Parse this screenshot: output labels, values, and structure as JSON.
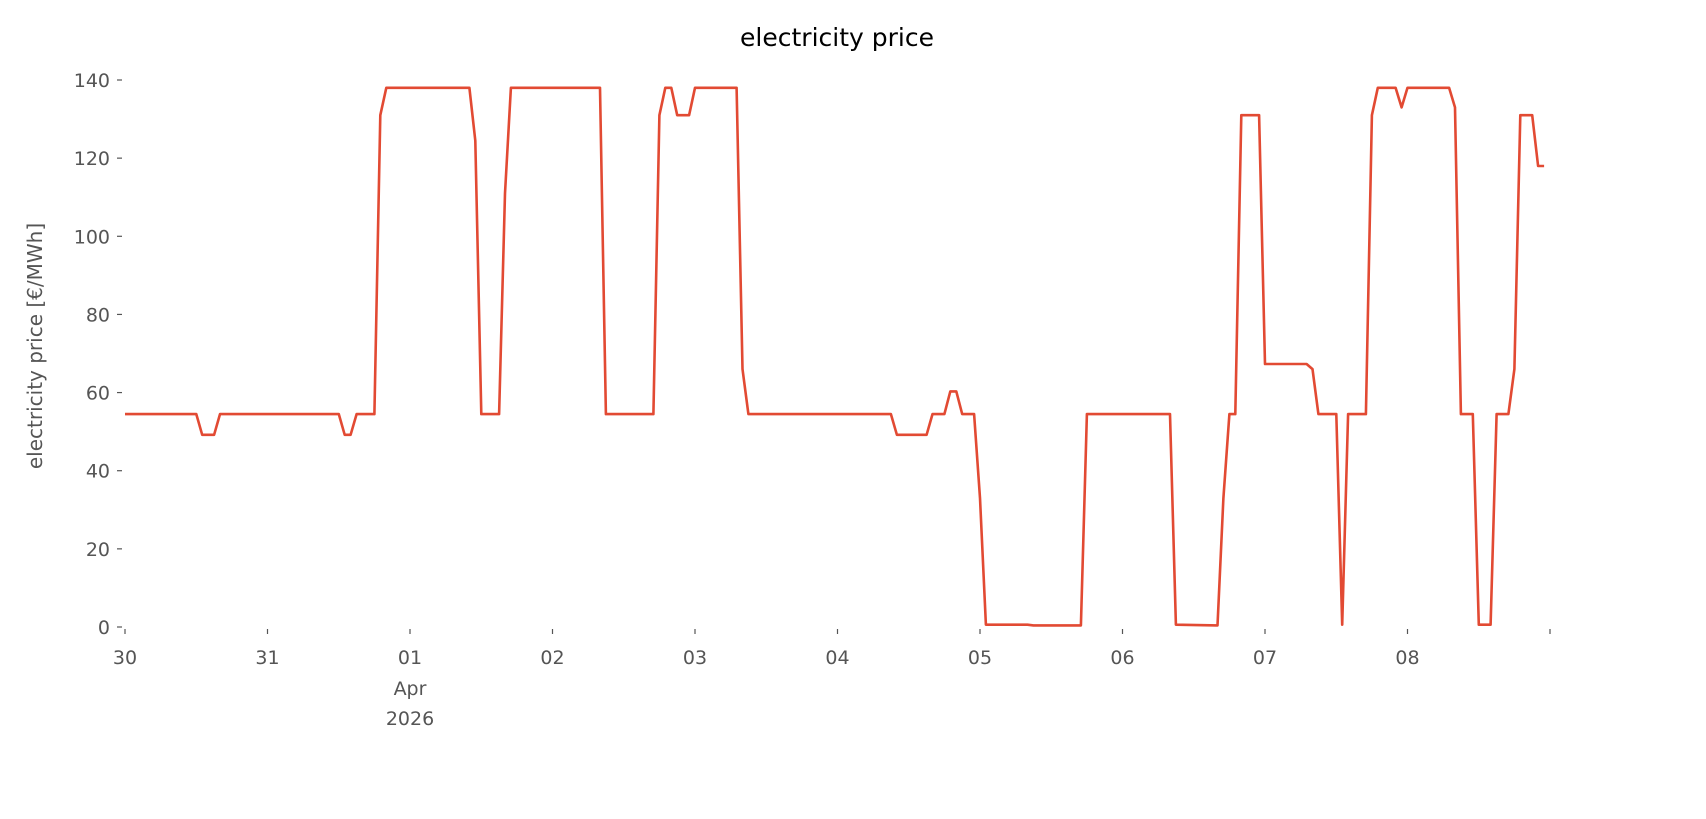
{
  "chart_data": {
    "type": "line",
    "title": "electricity price",
    "xlabel": "",
    "ylabel": "electricity price [€/MWh]",
    "x_start": "2026-03-30T00:00",
    "x_end": "2026-04-09T00:00",
    "xlim_hours_from_start": [
      0,
      240
    ],
    "ylim": [
      0,
      140
    ],
    "grid": false,
    "line_color": "#E24A33",
    "y_ticks": [
      0,
      20,
      40,
      60,
      80,
      100,
      120,
      140
    ],
    "x_ticks": [
      {
        "hour": 0,
        "label": "30"
      },
      {
        "hour": 24,
        "label": "31"
      },
      {
        "hour": 48,
        "label": "01",
        "sub1": "Apr",
        "sub2": "2026"
      },
      {
        "hour": 72,
        "label": "02"
      },
      {
        "hour": 96,
        "label": "03"
      },
      {
        "hour": 120,
        "label": "04"
      },
      {
        "hour": 144,
        "label": "05"
      },
      {
        "hour": 168,
        "label": "06"
      },
      {
        "hour": 192,
        "label": "07"
      },
      {
        "hour": 216,
        "label": "08"
      },
      {
        "hour": 240,
        "label": ""
      }
    ],
    "series": [
      {
        "points_hour_value": [
          [
            0,
            54.5
          ],
          [
            12,
            54.5
          ],
          [
            13,
            49.2
          ],
          [
            15,
            49.2
          ],
          [
            16,
            54.5
          ],
          [
            36,
            54.5
          ],
          [
            37,
            49.2
          ],
          [
            38,
            49.2
          ],
          [
            39,
            54.5
          ],
          [
            42,
            54.5
          ],
          [
            43,
            131
          ],
          [
            44,
            138
          ],
          [
            58,
            138
          ],
          [
            59,
            124.5
          ],
          [
            60,
            54.5
          ],
          [
            63,
            54.5
          ],
          [
            64,
            111
          ],
          [
            65,
            138
          ],
          [
            80,
            138
          ],
          [
            81,
            54.5
          ],
          [
            89,
            54.5
          ],
          [
            90,
            131
          ],
          [
            91,
            138
          ],
          [
            92,
            138
          ],
          [
            93,
            131
          ],
          [
            95,
            131
          ],
          [
            96,
            138
          ],
          [
            103,
            138
          ],
          [
            104,
            66
          ],
          [
            105,
            54.5
          ],
          [
            129,
            54.5
          ],
          [
            130,
            49.2
          ],
          [
            135,
            49.2
          ],
          [
            136,
            54.5
          ],
          [
            138,
            54.5
          ],
          [
            139,
            60.3
          ],
          [
            140,
            60.3
          ],
          [
            141,
            54.5
          ],
          [
            143,
            54.5
          ],
          [
            144,
            33
          ],
          [
            145,
            0.6
          ],
          [
            152,
            0.6
          ],
          [
            153,
            0.4
          ],
          [
            161,
            0.4
          ],
          [
            162,
            54.5
          ],
          [
            176,
            54.5
          ],
          [
            177,
            0.6
          ],
          [
            184,
            0.4
          ],
          [
            185,
            33
          ],
          [
            186,
            54.5
          ],
          [
            187,
            54.5
          ],
          [
            188,
            131
          ],
          [
            191,
            131
          ],
          [
            192,
            67.3
          ],
          [
            199,
            67.3
          ],
          [
            200,
            66
          ],
          [
            201,
            54.5
          ],
          [
            204,
            54.5
          ],
          [
            205,
            0.6
          ],
          [
            206,
            54.5
          ],
          [
            209,
            54.5
          ],
          [
            210,
            131
          ],
          [
            211,
            138
          ],
          [
            214,
            138
          ],
          [
            215,
            133
          ],
          [
            216,
            138
          ],
          [
            223,
            138
          ],
          [
            224,
            133
          ],
          [
            225,
            54.5
          ],
          [
            227,
            54.5
          ],
          [
            228,
            0.6
          ],
          [
            230,
            0.6
          ],
          [
            231,
            54.5
          ],
          [
            233,
            54.5
          ],
          [
            234,
            66
          ],
          [
            235,
            131
          ],
          [
            237,
            131
          ],
          [
            238,
            118
          ],
          [
            239,
            118
          ]
        ]
      }
    ]
  }
}
